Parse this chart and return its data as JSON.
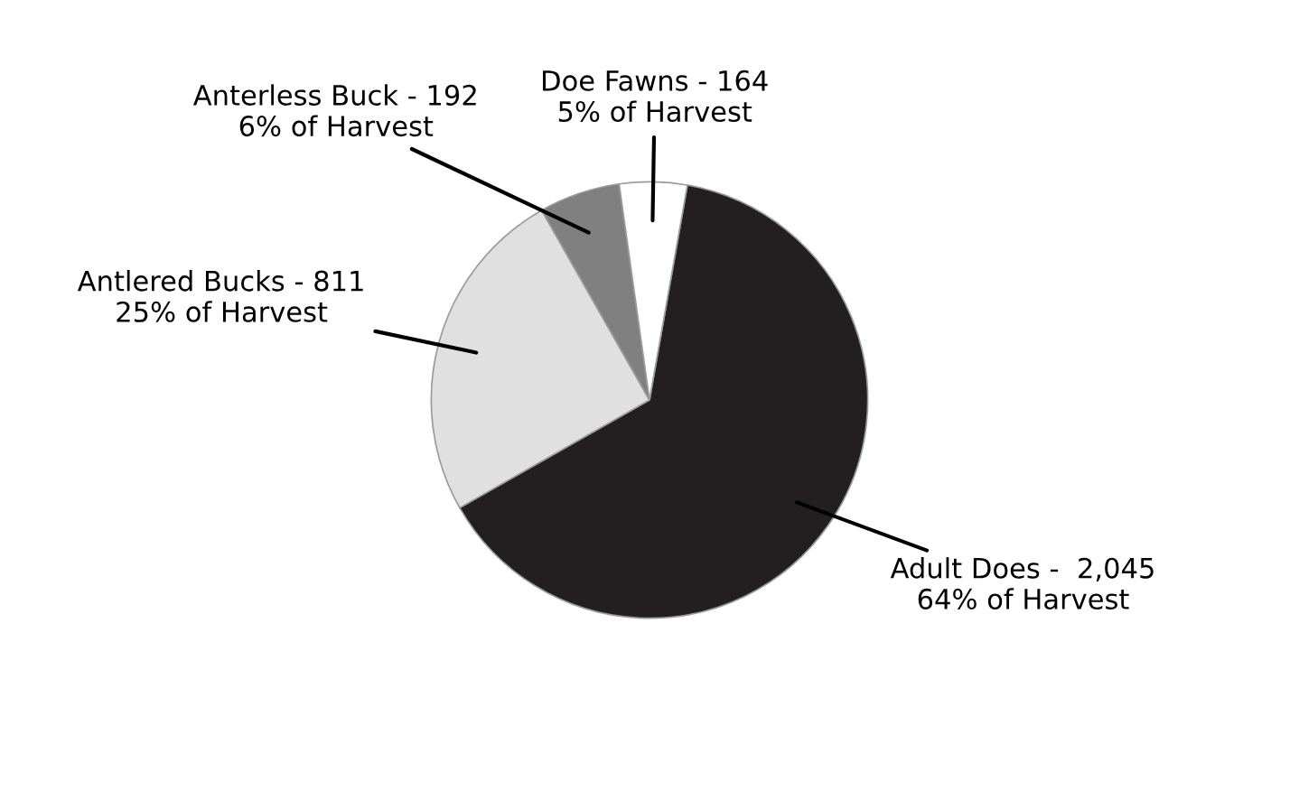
{
  "chart_data": {
    "type": "pie",
    "categories": [
      "Adult Does -  2,045\n64% of Harvest",
      "Antlered Bucks - 811\n25% of Harvest",
      "Anterless Buck - 192\n6% of Harvest",
      "Doe Fawns - 164\n5% of Harvest"
    ],
    "values": [
      64,
      25,
      6,
      5
    ],
    "colors": [
      "#231f20",
      "#e0e0e0",
      "#808080",
      "#ffffff"
    ],
    "legend": false
  }
}
